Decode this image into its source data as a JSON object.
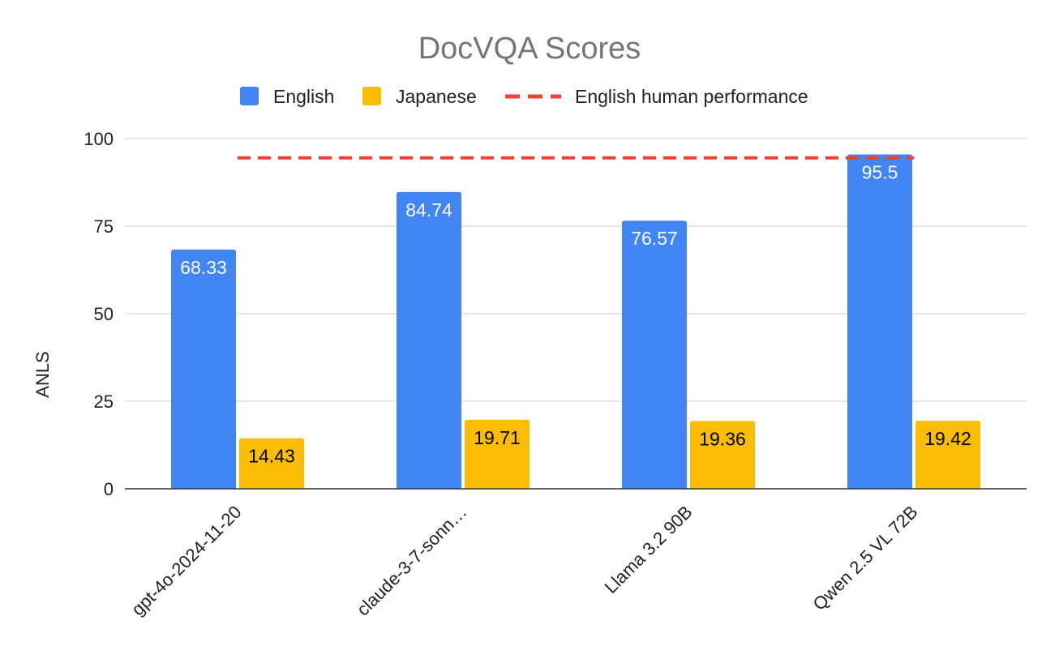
{
  "chart_data": {
    "type": "bar",
    "title": "DocVQA Scores",
    "xlabel": "",
    "ylabel": "ANLS",
    "ylim": [
      0,
      100
    ],
    "yticks": [
      0,
      25,
      50,
      75,
      100
    ],
    "grid": true,
    "legend_position": "top",
    "categories": [
      "gpt-4o-2024-11-20",
      "claude-3-7-sonn…",
      "Llama 3.2 90B",
      "Qwen 2.5 VL 72B"
    ],
    "series": [
      {
        "name": "English",
        "color": "#4285f4",
        "label_color": "#ffffff",
        "values": [
          68.33,
          84.74,
          76.57,
          95.5
        ]
      },
      {
        "name": "Japanese",
        "color": "#fbbc04",
        "label_color": "#000000",
        "values": [
          14.43,
          19.71,
          19.36,
          19.42
        ]
      }
    ],
    "reference_line": {
      "name": "English human performance",
      "value": 94.5,
      "color": "#ea4335",
      "style": "dashed",
      "from_category": 0,
      "to_category": 3
    }
  }
}
